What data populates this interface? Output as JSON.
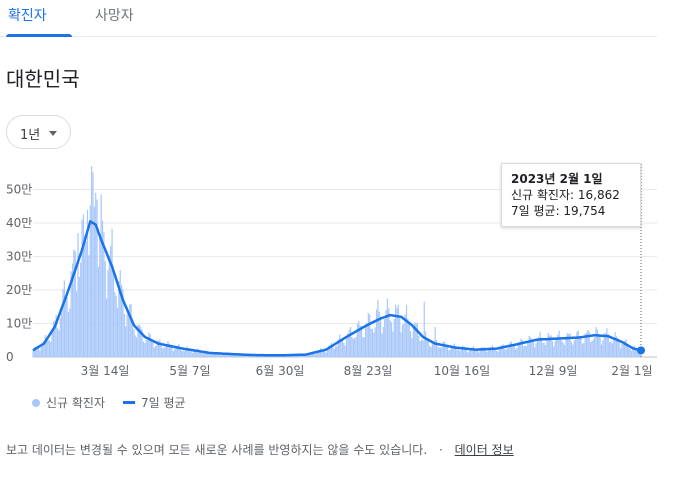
{
  "tabs": [
    {
      "label": "확진자",
      "active": true
    },
    {
      "label": "사망자",
      "active": false
    }
  ],
  "region_title": "대한민국",
  "range_select": {
    "value": "1년"
  },
  "tooltip": {
    "date": "2023년 2월 1일",
    "cases_line": "신규 확진자: 16,862",
    "avg_line": "7일 평균: 19,754"
  },
  "legend": {
    "cases_label": "신규 확진자",
    "avg_label": "7일 평균"
  },
  "footer": {
    "note": "보고 데이터는 변경될 수 있으며 모든 새로운 사례를 반영하지는 않을 수도 있습니다.",
    "separator": "·",
    "link_label": "데이터 정보"
  },
  "colors": {
    "accent": "#1a73e8",
    "bar": "#a8c7fa",
    "grid": "#e8eaed"
  },
  "chart_data": {
    "type": "bar",
    "x_labels": [
      "3월 14일",
      "5월 7일",
      "6월 30일",
      "8월 23일",
      "10월 16일",
      "12월 9일",
      "2월 1일"
    ],
    "y_ticks": [
      "0",
      "10만",
      "20만",
      "30만",
      "40만",
      "50만"
    ],
    "ylim": [
      0,
      550000
    ],
    "series": [
      {
        "name": "신규 확진자",
        "kind": "bar"
      },
      {
        "name": "7일 평균",
        "kind": "line"
      }
    ],
    "avg_keypoints": [
      [
        0,
        20000
      ],
      [
        8,
        40000
      ],
      [
        16,
        90000
      ],
      [
        26,
        200000
      ],
      [
        36,
        320000
      ],
      [
        42,
        405000
      ],
      [
        46,
        395000
      ],
      [
        50,
        350000
      ],
      [
        58,
        270000
      ],
      [
        66,
        170000
      ],
      [
        74,
        95000
      ],
      [
        82,
        60000
      ],
      [
        92,
        40000
      ],
      [
        110,
        25000
      ],
      [
        130,
        12000
      ],
      [
        160,
        6000
      ],
      [
        180,
        5000
      ],
      [
        200,
        7000
      ],
      [
        215,
        22000
      ],
      [
        230,
        60000
      ],
      [
        245,
        95000
      ],
      [
        255,
        115000
      ],
      [
        262,
        125000
      ],
      [
        270,
        120000
      ],
      [
        278,
        95000
      ],
      [
        286,
        60000
      ],
      [
        295,
        40000
      ],
      [
        310,
        28000
      ],
      [
        325,
        22000
      ],
      [
        340,
        25000
      ],
      [
        355,
        38000
      ],
      [
        370,
        52000
      ],
      [
        385,
        55000
      ],
      [
        400,
        58000
      ],
      [
        412,
        65000
      ],
      [
        422,
        62000
      ],
      [
        432,
        45000
      ],
      [
        440,
        26000
      ],
      [
        446,
        19754
      ]
    ],
    "spikes": [
      [
        43,
        570000
      ],
      [
        40,
        440000
      ],
      [
        46,
        490000
      ],
      [
        47,
        470000
      ],
      [
        36,
        410000
      ],
      [
        33,
        370000
      ],
      [
        253,
        170000
      ],
      [
        259,
        140000
      ],
      [
        287,
        165000
      ],
      [
        295,
        90000
      ]
    ],
    "highlight": {
      "x": 446,
      "cases": 16862,
      "avg": 19754
    }
  }
}
